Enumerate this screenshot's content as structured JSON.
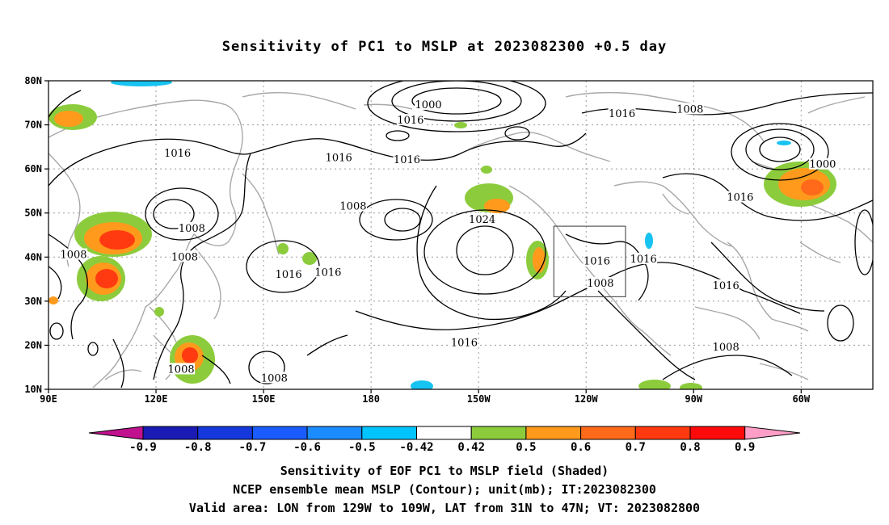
{
  "title": "Sensitivity of PC1 to MSLP at 2023082300 +0.5 day",
  "map": {
    "lat_ticks": [
      "80N",
      "70N",
      "60N",
      "50N",
      "40N",
      "30N",
      "20N",
      "10N"
    ],
    "lon_ticks": [
      "90E",
      "120E",
      "150E",
      "180",
      "150W",
      "120W",
      "90W",
      "60W"
    ],
    "lon_range_deg": [
      90,
      320
    ],
    "lat_range_deg": [
      10,
      80
    ],
    "valid_box": {
      "lon_from": "129W",
      "lon_to": "109W",
      "lat_from": "31N",
      "lat_to": "47N"
    },
    "contour_labels": [
      {
        "text": "1000",
        "lon": 196,
        "lat": 74.5
      },
      {
        "text": "1016",
        "lon": 191,
        "lat": 71
      },
      {
        "text": "1016",
        "lon": 126,
        "lat": 63.5
      },
      {
        "text": "1016",
        "lon": 171,
        "lat": 62.5
      },
      {
        "text": "1016",
        "lon": 190,
        "lat": 62
      },
      {
        "text": "1016",
        "lon": 250,
        "lat": 72.5
      },
      {
        "text": "1008",
        "lon": 269,
        "lat": 73.5
      },
      {
        "text": "1000",
        "lon": 306,
        "lat": 61
      },
      {
        "text": "1016",
        "lon": 283,
        "lat": 53.5
      },
      {
        "text": "1008",
        "lon": 175,
        "lat": 51.5
      },
      {
        "text": "1008",
        "lon": 130,
        "lat": 46.5
      },
      {
        "text": "1024",
        "lon": 211,
        "lat": 48.5
      },
      {
        "text": "1008",
        "lon": 97,
        "lat": 40.5
      },
      {
        "text": "1008",
        "lon": 128,
        "lat": 40
      },
      {
        "text": "1016",
        "lon": 157,
        "lat": 36
      },
      {
        "text": "1016",
        "lon": 168,
        "lat": 36.5
      },
      {
        "text": "1016",
        "lon": 243,
        "lat": 39
      },
      {
        "text": "1016",
        "lon": 256,
        "lat": 39.5
      },
      {
        "text": "1008",
        "lon": 244,
        "lat": 34
      },
      {
        "text": "1016",
        "lon": 279,
        "lat": 33.5
      },
      {
        "text": "1016",
        "lon": 206,
        "lat": 20.5
      },
      {
        "text": "1008",
        "lon": 279,
        "lat": 19.5
      },
      {
        "text": "1008",
        "lon": 127,
        "lat": 14.5
      },
      {
        "text": "1008",
        "lon": 153,
        "lat": 12.5
      }
    ],
    "shaded_colors": {
      "green": "#8ccc3c",
      "orange": "#ff9a1c",
      "dark_orange": "#ff6a1a",
      "red": "#ff3a10",
      "cyan": "#17c3f0",
      "blue": "#1a8cff"
    }
  },
  "colorbar": {
    "labels": [
      "-0.9",
      "-0.8",
      "-0.7",
      "-0.6",
      "-0.5",
      "-0.42",
      "0.42",
      "0.5",
      "0.6",
      "0.7",
      "0.8",
      "0.9"
    ],
    "left_cap_color": "#c0118e",
    "right_cap_color": "#ff9fc8",
    "box_colors": [
      "#1a1ab4",
      "#1438dc",
      "#1a5cff",
      "#1a8cff",
      "#00c4ff",
      "#ffffff",
      "#8ccc3c",
      "#ff9a1c",
      "#ff6a1a",
      "#ff3a10",
      "#ff0a0a"
    ]
  },
  "captions": {
    "line1": "Sensitivity of EOF PC1 to MSLP field (Shaded)",
    "line2": "NCEP ensemble mean MSLP (Contour); unit(mb); IT:2023082300",
    "line3": "Valid area: LON from 129W to 109W, LAT from 31N to 47N; VT: 2023082800"
  }
}
